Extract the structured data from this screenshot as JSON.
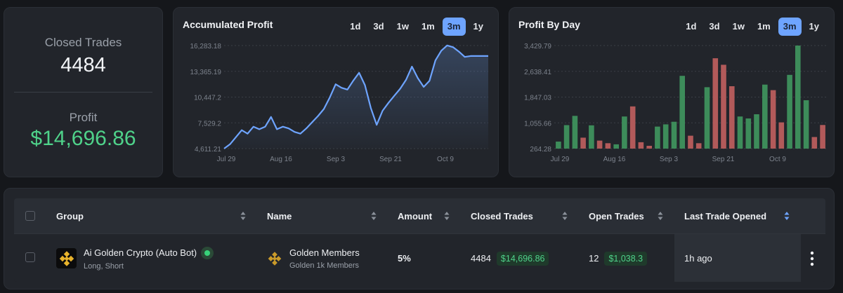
{
  "stats": {
    "closed_label": "Closed Trades",
    "closed_value": "4484",
    "profit_label": "Profit",
    "profit_value": "$14,696.86"
  },
  "range_tabs": [
    "1d",
    "3d",
    "1w",
    "1m",
    "3m",
    "1y"
  ],
  "active_range": "3m",
  "colors": {
    "line": "#6ea4ff",
    "bar_positive": "#3d8c5a",
    "bar_negative": "#b25a5a",
    "profit_green": "#4fd28a",
    "active_tab": "#6ea4ff"
  },
  "chart_data": [
    {
      "type": "area",
      "title": "Accumulated Profit",
      "x_tick_labels": [
        "Jul 29",
        "Aug 16",
        "Sep 3",
        "Sep 21",
        "Oct 9"
      ],
      "y_tick_labels": [
        "16,283.18",
        "13,365.19",
        "10,447.2",
        "7,529.2",
        "4,611.21"
      ],
      "ylim": [
        4611.21,
        16283.18
      ],
      "grid": true,
      "x": [
        0,
        2,
        4,
        6,
        8,
        10,
        12,
        14,
        16,
        18,
        20,
        22,
        24,
        26,
        28,
        30,
        32,
        34,
        36,
        38,
        40,
        42,
        44,
        46,
        48,
        50,
        52,
        54,
        56,
        58,
        60,
        62,
        64,
        66,
        68,
        70,
        72,
        74,
        76,
        78,
        80,
        82,
        84,
        86,
        88,
        90
      ],
      "y": [
        4611,
        5100,
        5900,
        6700,
        6300,
        7100,
        6800,
        7100,
        8200,
        6800,
        7100,
        6900,
        6500,
        6300,
        6900,
        7600,
        8300,
        9100,
        10400,
        11900,
        11500,
        11300,
        12300,
        13200,
        11800,
        9200,
        7300,
        8900,
        9800,
        10600,
        11400,
        12400,
        13900,
        12600,
        11600,
        12300,
        14600,
        15700,
        16300,
        16100,
        15600,
        15000,
        15100,
        15100,
        15100,
        15100
      ],
      "x_domain": [
        0,
        90
      ]
    },
    {
      "type": "bar",
      "title": "Profit By Day",
      "x_tick_labels": [
        "Jul 29",
        "Aug 16",
        "Sep 3",
        "Sep 21",
        "Oct 9"
      ],
      "y_tick_labels": [
        "3,429.79",
        "2,638.41",
        "1,847.03",
        "1,055.66",
        "264.28"
      ],
      "ylim": [
        264.28,
        3429.79
      ],
      "grid": true,
      "values": [
        480,
        985,
        1270,
        600,
        980,
        510,
        430,
        395,
        1250,
        1560,
        460,
        330,
        940,
        1010,
        1090,
        2500,
        660,
        430,
        2150,
        3040,
        2840,
        2180,
        1250,
        1190,
        1320,
        2230,
        2060,
        1070,
        2530,
        3430,
        1750,
        620,
        990
      ],
      "signs": [
        "p",
        "p",
        "p",
        "n",
        "p",
        "n",
        "n",
        "p",
        "p",
        "n",
        "n",
        "n",
        "p",
        "p",
        "p",
        "p",
        "n",
        "n",
        "p",
        "n",
        "n",
        "n",
        "p",
        "p",
        "p",
        "p",
        "n",
        "n",
        "p",
        "p",
        "p",
        "n",
        "n"
      ]
    }
  ],
  "table": {
    "headers": {
      "group": "Group",
      "name": "Name",
      "amount": "Amount",
      "closed_trades": "Closed Trades",
      "open_trades": "Open Trades",
      "last_trade": "Last Trade Opened"
    },
    "rows": [
      {
        "group_title": "Ai Golden Crypto (Auto Bot)",
        "group_sub": "Long, Short",
        "name_title": "Golden Members",
        "name_sub": "Golden 1k Members",
        "amount": "5%",
        "closed_count": "4484",
        "closed_profit": "$14,696.86",
        "open_count": "12",
        "open_profit": "$1,038.3",
        "last_trade": "1h ago"
      }
    ]
  }
}
